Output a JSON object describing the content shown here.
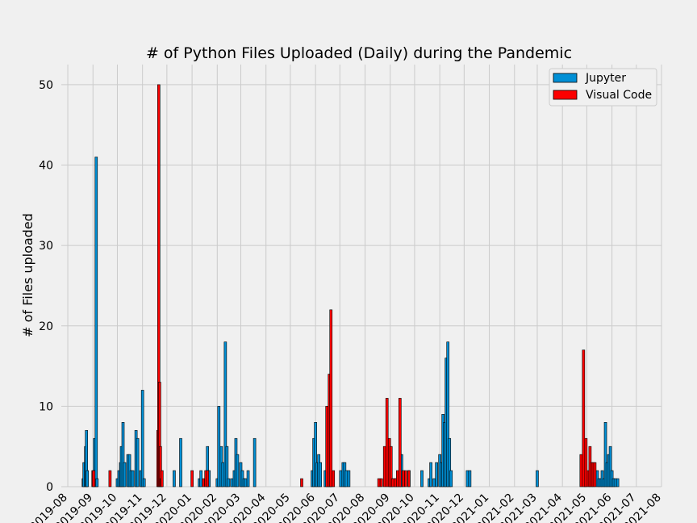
{
  "chart_data": {
    "type": "bar",
    "title": "# of Python Files Uploaded (Daily) during the Pandemic",
    "xlabel": "",
    "ylabel": "# of Files uploaded",
    "x_type": "date",
    "xlim": [
      "2019-07-24",
      "2021-08-01"
    ],
    "ylim": [
      0,
      52.5
    ],
    "yticks": [
      0,
      10,
      20,
      30,
      40,
      50
    ],
    "xticks": [
      "2019-08",
      "2019-09",
      "2019-10",
      "2019-11",
      "2019-12",
      "2020-01",
      "2020-02",
      "2020-03",
      "2020-04",
      "2020-05",
      "2020-06",
      "2020-07",
      "2020-08",
      "2020-09",
      "2020-10",
      "2020-11",
      "2020-12",
      "2021-01",
      "2021-02",
      "2021-03",
      "2021-04",
      "2021-05",
      "2021-06",
      "2021-07",
      "2021-08"
    ],
    "grid": true,
    "legend_position": "top-right",
    "bar_width_days": 3,
    "series": [
      {
        "name": "Jupyter",
        "color": "#008fd5",
        "x": [
          "2019-08-20",
          "2019-08-21",
          "2019-08-23",
          "2019-08-24",
          "2019-08-25",
          "2019-09-03",
          "2019-09-05",
          "2019-09-06",
          "2019-10-01",
          "2019-10-03",
          "2019-10-05",
          "2019-10-06",
          "2019-10-08",
          "2019-10-10",
          "2019-10-14",
          "2019-10-16",
          "2019-10-18",
          "2019-10-20",
          "2019-10-24",
          "2019-10-26",
          "2019-10-30",
          "2019-11-01",
          "2019-11-03",
          "2019-12-10",
          "2019-12-18",
          "2020-01-10",
          "2020-01-12",
          "2020-01-20",
          "2020-01-22",
          "2020-02-01",
          "2020-02-03",
          "2020-02-06",
          "2020-02-08",
          "2020-02-11",
          "2020-02-13",
          "2020-02-15",
          "2020-02-19",
          "2020-02-22",
          "2020-02-24",
          "2020-02-26",
          "2020-03-01",
          "2020-03-03",
          "2020-03-05",
          "2020-03-07",
          "2020-03-10",
          "2020-03-18",
          "2020-05-28",
          "2020-05-30",
          "2020-06-01",
          "2020-06-03",
          "2020-06-05",
          "2020-06-07",
          "2020-06-13",
          "2020-06-16",
          "2020-06-18",
          "2020-06-20",
          "2020-07-02",
          "2020-07-05",
          "2020-07-07",
          "2020-07-09",
          "2020-07-12",
          "2020-09-01",
          "2020-09-03",
          "2020-09-07",
          "2020-09-10",
          "2020-09-13",
          "2020-09-15",
          "2020-09-24",
          "2020-10-10",
          "2020-10-19",
          "2020-10-21",
          "2020-10-25",
          "2020-10-28",
          "2020-11-01",
          "2020-11-03",
          "2020-11-05",
          "2020-11-07",
          "2020-11-09",
          "2020-11-11",
          "2020-11-13",
          "2020-11-15",
          "2020-12-05",
          "2020-12-08",
          "2021-03-01",
          "2021-04-29",
          "2021-05-14",
          "2021-05-16",
          "2021-05-18",
          "2021-05-20",
          "2021-05-22",
          "2021-05-24",
          "2021-05-26",
          "2021-05-28",
          "2021-05-30",
          "2021-06-01",
          "2021-06-03",
          "2021-06-05",
          "2021-06-08"
        ],
        "values": [
          1,
          3,
          5,
          7,
          2,
          6,
          41,
          1,
          1,
          2,
          3,
          5,
          8,
          3,
          4,
          4,
          2,
          2,
          7,
          6,
          2,
          12,
          1,
          2,
          6,
          1,
          2,
          5,
          2,
          1,
          10,
          5,
          3,
          18,
          5,
          1,
          1,
          2,
          6,
          4,
          3,
          2,
          1,
          1,
          2,
          6,
          2,
          6,
          8,
          3,
          4,
          3,
          2,
          4,
          2,
          2,
          2,
          3,
          3,
          2,
          2,
          2,
          1,
          1,
          1,
          3,
          4,
          2,
          2,
          1,
          3,
          1,
          3,
          4,
          3,
          9,
          8,
          16,
          18,
          6,
          2,
          2,
          2,
          2,
          1,
          2,
          1,
          1,
          2,
          1,
          8,
          3,
          4,
          5,
          2,
          1,
          1,
          1
        ],
        "render": "full"
      },
      {
        "name": "Visual Code",
        "color": "#fc0000",
        "x": [
          "2019-09-01",
          "2019-09-02",
          "2019-09-22",
          "2019-11-20",
          "2019-11-21",
          "2019-11-22",
          "2019-11-23",
          "2019-11-24",
          "2019-11-25",
          "2020-01-01",
          "2020-01-15",
          "2020-01-18",
          "2020-01-20",
          "2020-05-15",
          "2020-06-15",
          "2020-06-18",
          "2020-06-20",
          "2020-06-23",
          "2020-08-18",
          "2020-08-21",
          "2020-08-25",
          "2020-08-28",
          "2020-08-31",
          "2020-09-02",
          "2020-09-04",
          "2020-09-07",
          "2020-09-10",
          "2020-09-13",
          "2020-09-17",
          "2020-09-20",
          "2020-09-24",
          "2021-04-24",
          "2021-04-27",
          "2021-04-30",
          "2021-05-03",
          "2021-05-05",
          "2021-05-07",
          "2021-05-09",
          "2021-05-11"
        ],
        "values": [
          2,
          2,
          2,
          7,
          50,
          13,
          5,
          1,
          2,
          2,
          1,
          2,
          2,
          1,
          10,
          14,
          22,
          2,
          1,
          1,
          5,
          11,
          6,
          5,
          1,
          1,
          2,
          11,
          2,
          2,
          2,
          4,
          17,
          6,
          2,
          5,
          3,
          3,
          3
        ],
        "render": "full"
      }
    ]
  }
}
